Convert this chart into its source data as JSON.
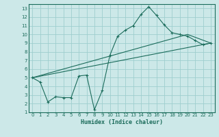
{
  "xlabel": "Humidex (Indice chaleur)",
  "xlim": [
    -0.5,
    23.5
  ],
  "ylim": [
    1,
    13.5
  ],
  "xticks": [
    0,
    1,
    2,
    3,
    4,
    5,
    6,
    7,
    8,
    9,
    10,
    11,
    12,
    13,
    14,
    15,
    16,
    17,
    18,
    19,
    20,
    21,
    22,
    23
  ],
  "yticks": [
    1,
    2,
    3,
    4,
    5,
    6,
    7,
    8,
    9,
    10,
    11,
    12,
    13
  ],
  "bg_color": "#cce8e8",
  "grid_color": "#9ecece",
  "line_color": "#1a6b5a",
  "line1_x": [
    0,
    1,
    2,
    3,
    4,
    5,
    6,
    7,
    8,
    9,
    10,
    11,
    12,
    13,
    14,
    15,
    16,
    17,
    18,
    19,
    20,
    21,
    22,
    23
  ],
  "line1_y": [
    5.0,
    4.5,
    2.2,
    2.8,
    2.7,
    2.7,
    5.2,
    5.3,
    1.3,
    3.5,
    7.6,
    9.8,
    10.5,
    11.0,
    12.3,
    13.2,
    12.2,
    11.1,
    10.2,
    10.0,
    9.8,
    9.3,
    8.8,
    9.0
  ],
  "line2_x": [
    0,
    23
  ],
  "line2_y": [
    5.0,
    9.0
  ],
  "line3_x": [
    0,
    20,
    23
  ],
  "line3_y": [
    5.0,
    10.0,
    9.0
  ]
}
